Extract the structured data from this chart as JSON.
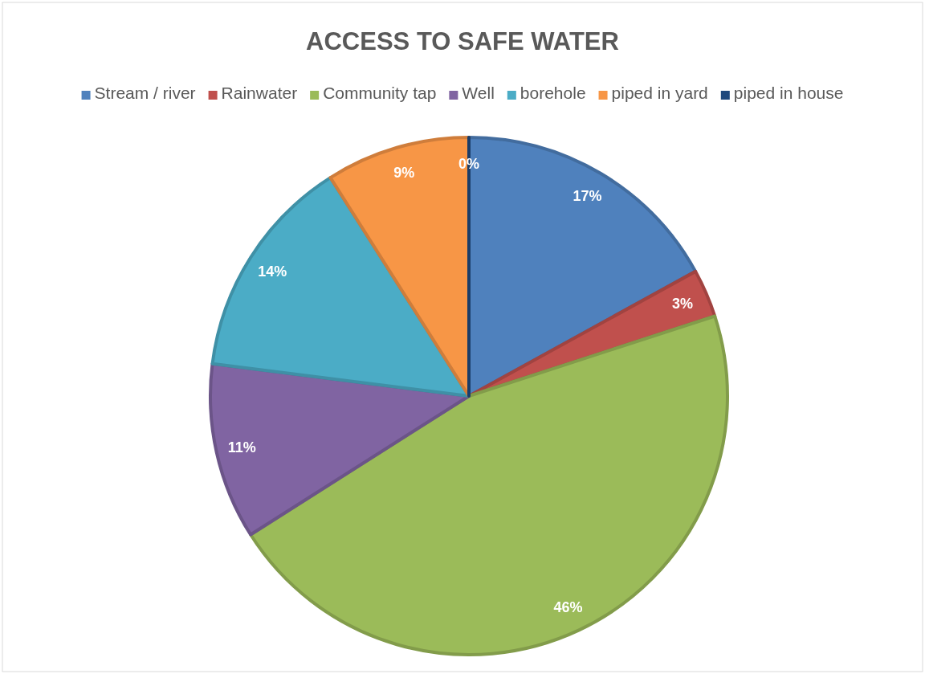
{
  "chart_data": {
    "type": "pie",
    "title": "ACCESS TO SAFE WATER",
    "categories": [
      "Stream / river",
      "Rainwater",
      "Community tap",
      "Well",
      "borehole",
      "piped in yard",
      "piped in house"
    ],
    "values": [
      17,
      3,
      46,
      11,
      14,
      9,
      0
    ],
    "colors": [
      "#4f81bd",
      "#c0504d",
      "#9bbb59",
      "#8064a2",
      "#4bacc6",
      "#f79646",
      "#1f497d"
    ],
    "value_labels": [
      "17%",
      "3%",
      "46%",
      "11%",
      "14%",
      "9%",
      "0%"
    ],
    "legend": "top"
  }
}
